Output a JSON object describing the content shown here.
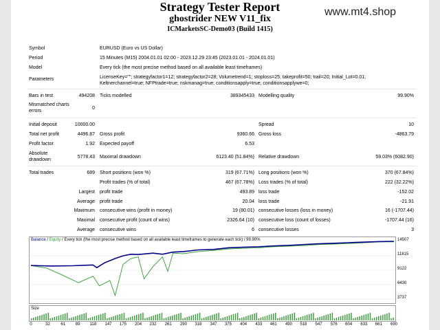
{
  "header": {
    "title": "Strategy Tester Report",
    "ea_name": "ghostrider NEW V11_fix",
    "account": "ICMarketsSC-Demo03 (Build 1415)",
    "watermark": "www.mt4.shop"
  },
  "info": {
    "symbol_label": "Symbol",
    "symbol_value": "EURUSD (Euro vs US Dollar)",
    "period_label": "Period",
    "period_value": "15 Minutes (M15) 2004.01.01 02:00 - 2023.12.29 23:45 (2023.01.01 - 2024.01.01)",
    "model_label": "Model",
    "model_value": "Every tick (the most precise method based on all available least timeframes)",
    "params_label": "Parameters",
    "params_line1": "LicenseKey=\"\"; strategyfactor1=12; strategyfactor2=28; Volumetrend=1; stoploss=25; takeprofit=50; trail=20; Initial_Lot=0.01;",
    "params_line2": "Keltnerchannel=true; NFPtrade=true; nskmanag=true; conditionsapply=true; conditionsapplywe=0;"
  },
  "stats": {
    "bars_label": "Bars in test",
    "bars_value": "494208",
    "ticks_label": "Ticks modelled",
    "ticks_value": "389345433",
    "quality_label": "Modelling quality",
    "quality_value": "99.90%",
    "mismatch_label1": "Mismatched charts",
    "mismatch_label2": "errors",
    "mismatch_value": "0",
    "deposit_label": "Initial deposit",
    "deposit_value": "10000.00",
    "spread_label": "Spread",
    "spread_value": "10",
    "netprofit_label": "Total net profit",
    "netprofit_value": "4496.87",
    "grossprofit_label": "Gross profit",
    "grossprofit_value": "9360.66",
    "grossloss_label": "Gross loss",
    "grossloss_value": "-4863.79",
    "pf_label": "Profit factor",
    "pf_value": "1.92",
    "ep_label": "Expected payoff",
    "ep_value": "6.53",
    "absdd_label1": "Absolute",
    "absdd_label2": "drawdown",
    "absdd_value": "5778.43",
    "maxdd_label": "Maximal drawdown",
    "maxdd_value": "6123.40 (51.84%)",
    "reldd_label": "Relative drawdown",
    "reldd_value": "59.03% (6082.90)",
    "trades_label": "Total trades",
    "trades_value": "689",
    "short_label": "Short positions (won %)",
    "short_value": "319 (67.71%)",
    "long_label": "Long positions (won %)",
    "long_value": "370 (67.84%)",
    "ptrades_label": "Profit trades (% of total)",
    "ptrades_value": "467 (67.78%)",
    "ltrades_label": "Loss trades (% of total)",
    "ltrades_value": "222 (32.22%)",
    "largest_label": "Largest",
    "lg_profit_label": "profit trade",
    "lg_profit_value": "493.89",
    "lg_loss_label": "loss trade",
    "lg_loss_value": "-152.02",
    "average_label": "Average",
    "av_profit_label": "profit trade",
    "av_profit_value": "20.04",
    "av_loss_label": "loss trade",
    "av_loss_value": "-21.91",
    "maximum_label": "Maximum",
    "mx_wins_label": "consecutive wins (profit in money)",
    "mx_wins_value": "19 (80.01)",
    "mx_losses_label": "consecutive losses (loss in money)",
    "mx_losses_value": "16 (-1707.44)",
    "maximal_label": "Maximal",
    "ml_profit_label": "consecutive profit (count of wins)",
    "ml_profit_value": "2326.64 (10)",
    "ml_loss_label": "consecutive loss (count of losses)",
    "ml_loss_value": "-1707.44 (16)",
    "average2_label": "Average",
    "av_wins_label": "consecutive wins",
    "av_wins_value": "6",
    "av_losses_label": "consecutive losses",
    "av_losses_value": "3"
  },
  "chart_legend": {
    "balance": "Balance",
    "sep1": " / ",
    "equity": "Equity",
    "rest": " / Every tick (the most precise method based on all available least timeframes to generate each tick) / 99.90%"
  },
  "size_label": "Size",
  "colors": {
    "balance": "#00008b",
    "equity": "#2e9e2e",
    "size": "#2e9e2e"
  },
  "chart_data": {
    "type": "line",
    "y_ticks": [
      "14507",
      "11815",
      "9122",
      "6430",
      "3737"
    ],
    "x_ticks": [
      "0",
      "32",
      "61",
      "89",
      "118",
      "147",
      "175",
      "204",
      "232",
      "261",
      "290",
      "318",
      "347",
      "375",
      "404",
      "433",
      "461",
      "490",
      "518",
      "547",
      "576",
      "604",
      "633",
      "661",
      "690"
    ],
    "series": [
      {
        "name": "Balance",
        "x": [
          0,
          40,
          80,
          118,
          125,
          140,
          160,
          175,
          190,
          204,
          232,
          250,
          270,
          290,
          318,
          347,
          375,
          404,
          433,
          461,
          490,
          518,
          547,
          576,
          604,
          633,
          661,
          690
        ],
        "values": [
          10000,
          9900,
          9950,
          10100,
          9600,
          10500,
          11300,
          11800,
          12100,
          12050,
          12300,
          12100,
          12500,
          12600,
          12900,
          13000,
          13300,
          13400,
          13500,
          13650,
          13750,
          13900,
          14050,
          14150,
          14250,
          14350,
          14450,
          14507
        ]
      },
      {
        "name": "Equity",
        "x": [
          0,
          30,
          60,
          90,
          118,
          130,
          150,
          160,
          175,
          190,
          204,
          215,
          232,
          250,
          260,
          270,
          290,
          318,
          347,
          375,
          404,
          433,
          461,
          490,
          518,
          547,
          576,
          604,
          633,
          661,
          690
        ],
        "values": [
          10000,
          9500,
          8200,
          6800,
          8000,
          6200,
          7200,
          4400,
          10200,
          11300,
          11600,
          7500,
          9800,
          11600,
          8900,
          12300,
          12200,
          12600,
          12800,
          13100,
          13200,
          13300,
          13500,
          13600,
          13700,
          13900,
          14000,
          14100,
          14250,
          14400,
          14400
        ]
      }
    ],
    "ylim": [
      3737,
      14507
    ],
    "xlim": [
      0,
      690
    ]
  }
}
